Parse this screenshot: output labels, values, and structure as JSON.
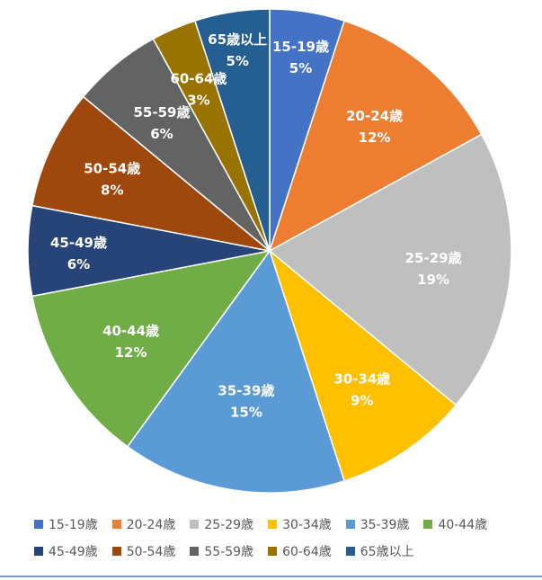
{
  "chart_data": {
    "type": "pie",
    "categories": [
      "15-19歳",
      "20-24歳",
      "25-29歳",
      "30-34歳",
      "35-39歳",
      "40-44歳",
      "45-49歳",
      "50-54歳",
      "55-59歳",
      "60-64歳",
      "65歳以上"
    ],
    "values": [
      5,
      12,
      19,
      9,
      15,
      12,
      6,
      8,
      6,
      3,
      5
    ],
    "value_labels": [
      "5%",
      "12%",
      "19%",
      "9%",
      "15%",
      "12%",
      "6%",
      "8%",
      "6%",
      "3%",
      "5%"
    ],
    "colors": [
      "#4472C4",
      "#ED7D31",
      "#BFBFBF",
      "#FFC000",
      "#5B9BD5",
      "#70AD47",
      "#264478",
      "#9E480E",
      "#636363",
      "#997300",
      "#255E91"
    ],
    "legend_position": "bottom",
    "legend_rows": [
      [
        0,
        1,
        2,
        3,
        4,
        5
      ],
      [
        6,
        7,
        8,
        9,
        10
      ]
    ]
  }
}
